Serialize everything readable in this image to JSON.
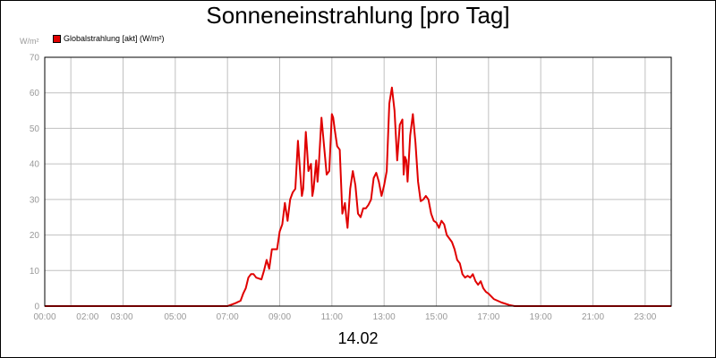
{
  "chart_data": {
    "type": "line",
    "title": "Sonneneinstrahlung [pro Tag]",
    "ylabel": "W/m²",
    "xlabel": "14.02",
    "legend": {
      "label": "Globalstrahlung [akt] (W/m²)",
      "placement": "top-left"
    },
    "ylim": [
      0,
      70
    ],
    "xlim": [
      0,
      24
    ],
    "grid": true,
    "y_ticks": [
      "0",
      "10",
      "20",
      "30",
      "40",
      "50",
      "60",
      "70"
    ],
    "x_ticks": [
      "00:00",
      "02:00",
      "03:00",
      "05:00",
      "07:00",
      "09:00",
      "11:00",
      "13:00",
      "15:00",
      "17:00",
      "19:00",
      "21:00",
      "23:00"
    ],
    "series_color": "#e00000",
    "series": [
      {
        "name": "Globalstrahlung [akt] (W/m²)",
        "x": [
          0,
          6.5,
          7.0,
          7.3,
          7.5,
          7.6,
          7.7,
          7.8,
          7.9,
          8.0,
          8.1,
          8.3,
          8.4,
          8.5,
          8.6,
          8.7,
          8.8,
          8.9,
          9.0,
          9.1,
          9.2,
          9.3,
          9.4,
          9.5,
          9.6,
          9.7,
          9.8,
          9.85,
          9.9,
          10.0,
          10.05,
          10.1,
          10.2,
          10.25,
          10.3,
          10.4,
          10.45,
          10.5,
          10.6,
          10.7,
          10.8,
          10.9,
          11.0,
          11.05,
          11.1,
          11.2,
          11.3,
          11.4,
          11.5,
          11.55,
          11.6,
          11.7,
          11.8,
          11.9,
          12.0,
          12.1,
          12.2,
          12.3,
          12.4,
          12.5,
          12.6,
          12.7,
          12.8,
          12.9,
          13.0,
          13.1,
          13.2,
          13.3,
          13.4,
          13.5,
          13.6,
          13.7,
          13.75,
          13.8,
          13.85,
          13.9,
          14.0,
          14.1,
          14.2,
          14.3,
          14.4,
          14.5,
          14.6,
          14.7,
          14.8,
          14.9,
          15.0,
          15.1,
          15.2,
          15.3,
          15.4,
          15.5,
          15.6,
          15.7,
          15.8,
          15.9,
          16.0,
          16.1,
          16.2,
          16.3,
          16.4,
          16.5,
          16.6,
          16.7,
          16.8,
          16.9,
          17.0,
          17.2,
          17.5,
          17.8,
          18.0,
          24
        ],
        "values": [
          0,
          0,
          0,
          0.8,
          1.5,
          3.5,
          5,
          8,
          9,
          9,
          8,
          7.5,
          10,
          13,
          10.5,
          16,
          16,
          16,
          21,
          23,
          29,
          24,
          30,
          32,
          33,
          46.5,
          36,
          31,
          33,
          49,
          44,
          38,
          40,
          31,
          33,
          41,
          35,
          40,
          53,
          45,
          37,
          38,
          54,
          53,
          50,
          45,
          44,
          26,
          29,
          25,
          22,
          33,
          38,
          34,
          26,
          25,
          27.5,
          27.5,
          28.5,
          30,
          36,
          37.5,
          35,
          31,
          34,
          38,
          57,
          61.5,
          55,
          41,
          51,
          52.5,
          37,
          42,
          41,
          35,
          48,
          54,
          46,
          35,
          29.5,
          30,
          31,
          30,
          26,
          24,
          23.5,
          22,
          24,
          23,
          20,
          19,
          18,
          16,
          13,
          12,
          9,
          8,
          8.5,
          8,
          9,
          7,
          6,
          7,
          5,
          4,
          3.5,
          2,
          1,
          0.3,
          0,
          0
        ]
      }
    ]
  }
}
